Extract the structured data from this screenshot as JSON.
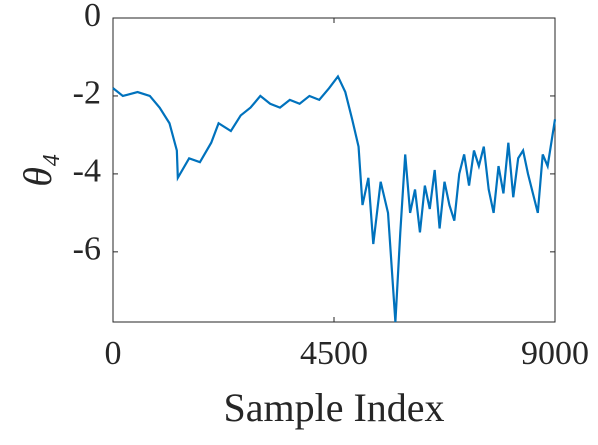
{
  "chart_data": {
    "type": "line",
    "xlabel": "Sample Index",
    "ylabel": "θ₄",
    "x": [
      0,
      200,
      500,
      750,
      950,
      1150,
      1300,
      1320,
      1550,
      1770,
      2000,
      2150,
      2400,
      2600,
      2800,
      3000,
      3200,
      3400,
      3600,
      3800,
      4000,
      4200,
      4400,
      4580,
      4730,
      4870,
      5000,
      5080,
      5200,
      5300,
      5450,
      5600,
      5750,
      5850,
      5950,
      6050,
      6150,
      6250,
      6350,
      6450,
      6550,
      6650,
      6750,
      6850,
      6950,
      7050,
      7150,
      7250,
      7350,
      7450,
      7550,
      7650,
      7750,
      7850,
      7950,
      8050,
      8150,
      8250,
      8350,
      8450,
      8550,
      8650,
      8750,
      8850,
      9000
    ],
    "series": [
      {
        "color": "#0072BD",
        "values": [
          -1.8,
          -2.0,
          -1.9,
          -2.0,
          -2.3,
          -2.7,
          -3.4,
          -4.1,
          -3.6,
          -3.7,
          -3.2,
          -2.7,
          -2.9,
          -2.5,
          -2.3,
          -2.0,
          -2.2,
          -2.3,
          -2.1,
          -2.2,
          -2.0,
          -2.1,
          -1.8,
          -1.5,
          -1.9,
          -2.6,
          -3.3,
          -4.8,
          -4.1,
          -5.8,
          -4.2,
          -5.0,
          -7.8,
          -5.5,
          -3.5,
          -5.0,
          -4.4,
          -5.5,
          -4.3,
          -4.9,
          -3.9,
          -5.4,
          -4.2,
          -4.8,
          -5.2,
          -4.0,
          -3.5,
          -4.3,
          -3.4,
          -3.8,
          -3.3,
          -4.4,
          -5.0,
          -3.8,
          -4.5,
          -3.2,
          -4.6,
          -3.6,
          -3.4,
          -4.0,
          -4.5,
          -5.0,
          -3.5,
          -3.8,
          -2.6
        ]
      }
    ],
    "xlim": [
      0,
      9000
    ],
    "xticks": [
      0,
      4500,
      9000
    ],
    "ylim": [
      -7.8,
      0
    ],
    "yticks": [
      0,
      -2,
      -4,
      -6
    ]
  }
}
